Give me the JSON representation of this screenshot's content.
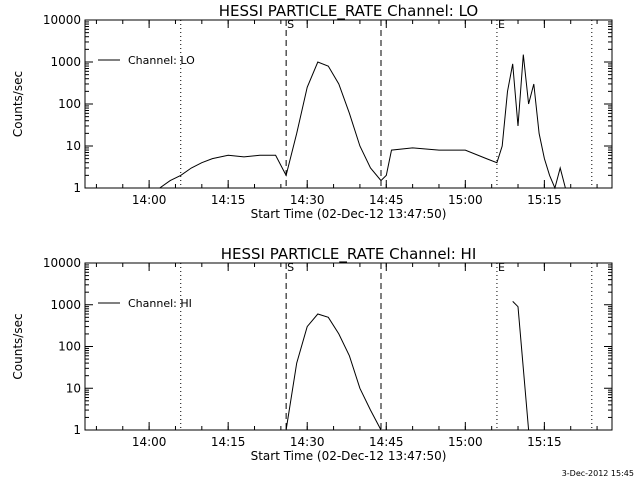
{
  "chart_data": [
    {
      "type": "line",
      "title": "HESSI PARTICLE_RATE Channel: LO",
      "xlabel": "Start Time (02-Dec-12 13:47:50)",
      "ylabel": "Counts/sec",
      "yscale": "log",
      "ylim": [
        1,
        10000
      ],
      "x_ticks": [
        "14:00",
        "14:15",
        "14:30",
        "14:45",
        "15:00",
        "15:15"
      ],
      "y_ticks": [
        "1",
        "10",
        "100",
        "1000",
        "10000"
      ],
      "legend": "top-left",
      "series": [
        {
          "name": "Channel: LO",
          "x": [
            "13:52",
            "13:54",
            "13:56",
            "13:58",
            "14:00",
            "14:02",
            "14:04",
            "14:06",
            "14:08",
            "14:10",
            "14:12",
            "14:15",
            "14:18",
            "14:21",
            "14:24",
            "14:26",
            "14:28",
            "14:30",
            "14:32",
            "14:34",
            "14:36",
            "14:38",
            "14:40",
            "14:42",
            "14:44",
            "14:45",
            "14:46",
            "14:50",
            "14:55",
            "15:00",
            "15:04",
            "15:06",
            "15:07",
            "15:08",
            "15:09",
            "15:10",
            "15:11",
            "15:12",
            "15:13",
            "15:14",
            "15:15",
            "15:16",
            "15:17",
            "15:18",
            "15:19"
          ],
          "y": [
            1,
            1,
            1,
            1,
            1,
            1,
            1.5,
            2,
            3,
            4,
            5,
            6,
            5.5,
            6,
            6,
            2,
            20,
            250,
            1000,
            800,
            300,
            60,
            10,
            3,
            1.5,
            2,
            8,
            9,
            8,
            8,
            5,
            4,
            10,
            200,
            900,
            30,
            1500,
            100,
            300,
            20,
            5,
            2,
            1,
            3,
            1
          ]
        }
      ],
      "vlines": [
        {
          "x": "14:06",
          "style": "dotted",
          "label": ""
        },
        {
          "x": "14:26",
          "style": "dashed",
          "label": "S"
        },
        {
          "x": "14:44",
          "style": "dashed",
          "label": ""
        },
        {
          "x": "15:06",
          "style": "dotted",
          "label": "E"
        },
        {
          "x": "15:24",
          "style": "dotted",
          "label": ""
        }
      ]
    },
    {
      "type": "line",
      "title": "HESSI PARTICLE_RATE Channel: HI",
      "xlabel": "Start Time (02-Dec-12 13:47:50)",
      "ylabel": "Counts/sec",
      "yscale": "log",
      "ylim": [
        1,
        10000
      ],
      "x_ticks": [
        "14:00",
        "14:15",
        "14:30",
        "14:45",
        "15:00",
        "15:15"
      ],
      "y_ticks": [
        "1",
        "10",
        "100",
        "1000",
        "10000"
      ],
      "legend": "top-left",
      "series": [
        {
          "name": "Channel: HI",
          "x": [
            "14:26",
            "14:28",
            "14:30",
            "14:32",
            "14:34",
            "14:36",
            "14:38",
            "14:40",
            "14:42",
            "14:44"
          ],
          "y": [
            1,
            40,
            300,
            600,
            500,
            200,
            60,
            10,
            3,
            1
          ]
        },
        {
          "name": "",
          "x": [
            "15:09",
            "15:10",
            "15:11",
            "15:12"
          ],
          "y": [
            1200,
            900,
            30,
            1
          ]
        }
      ],
      "vlines": [
        {
          "x": "14:06",
          "style": "dotted",
          "label": ""
        },
        {
          "x": "14:26",
          "style": "dashed",
          "label": "S"
        },
        {
          "x": "14:44",
          "style": "dashed",
          "label": ""
        },
        {
          "x": "15:06",
          "style": "dotted",
          "label": "E"
        },
        {
          "x": "15:24",
          "style": "dotted",
          "label": ""
        }
      ]
    }
  ],
  "footer": "3-Dec-2012 15:45"
}
